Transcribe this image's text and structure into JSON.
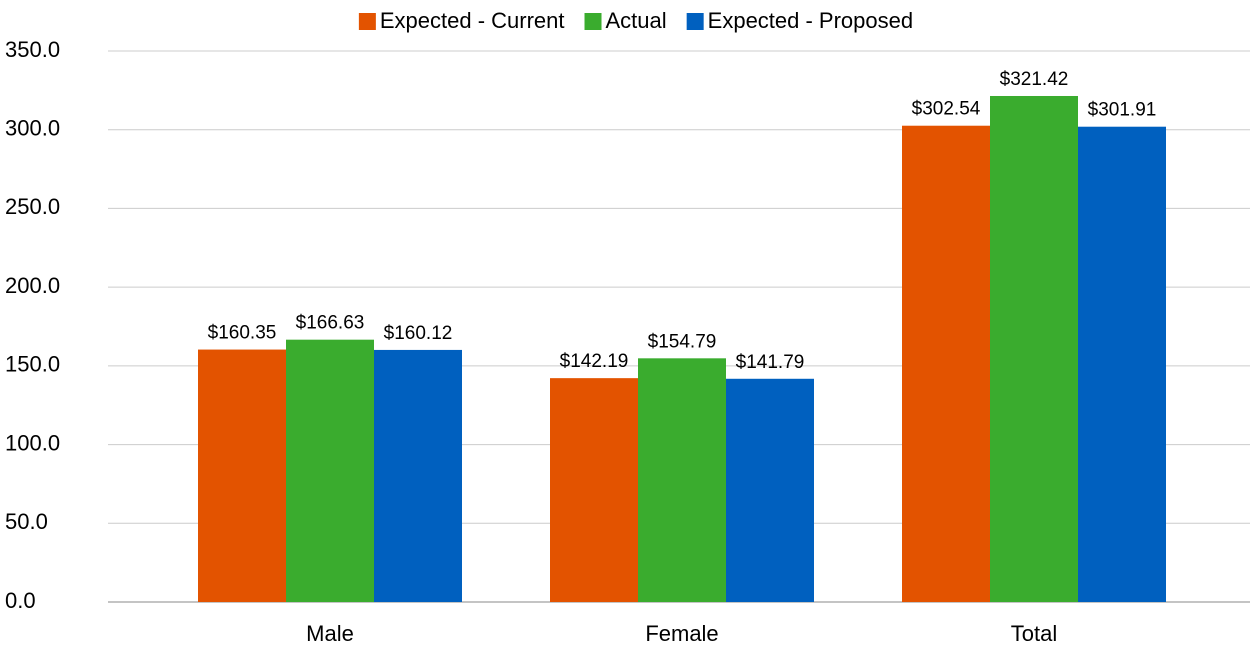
{
  "chart_data": {
    "type": "bar",
    "categories": [
      "Male",
      "Female",
      "Total"
    ],
    "series": [
      {
        "name": "Expected - Current",
        "color": "#e35300",
        "values": [
          160.35,
          142.19,
          302.54
        ],
        "value_labels": [
          "$160.35",
          "$142.19",
          "$302.54"
        ]
      },
      {
        "name": "Actual",
        "color": "#3aac2e",
        "values": [
          166.63,
          154.79,
          321.42
        ],
        "value_labels": [
          "$166.63",
          "$154.79",
          "$321.42"
        ]
      },
      {
        "name": "Expected - Proposed",
        "color": "#0060bf",
        "values": [
          160.12,
          141.79,
          301.91
        ],
        "value_labels": [
          "$160.12",
          "$141.79",
          "$301.91"
        ]
      }
    ],
    "ylim": [
      0,
      350
    ],
    "yticks": [
      {
        "value": 0,
        "label": "0.0"
      },
      {
        "value": 50,
        "label": "50.0"
      },
      {
        "value": 100,
        "label": "100.0"
      },
      {
        "value": 150,
        "label": "150.0"
      },
      {
        "value": 200,
        "label": "200.0"
      },
      {
        "value": 250,
        "label": "250.0"
      },
      {
        "value": 300,
        "label": "300.0"
      },
      {
        "value": 350,
        "label": "350.0"
      }
    ],
    "grid": true,
    "legend": "top"
  }
}
